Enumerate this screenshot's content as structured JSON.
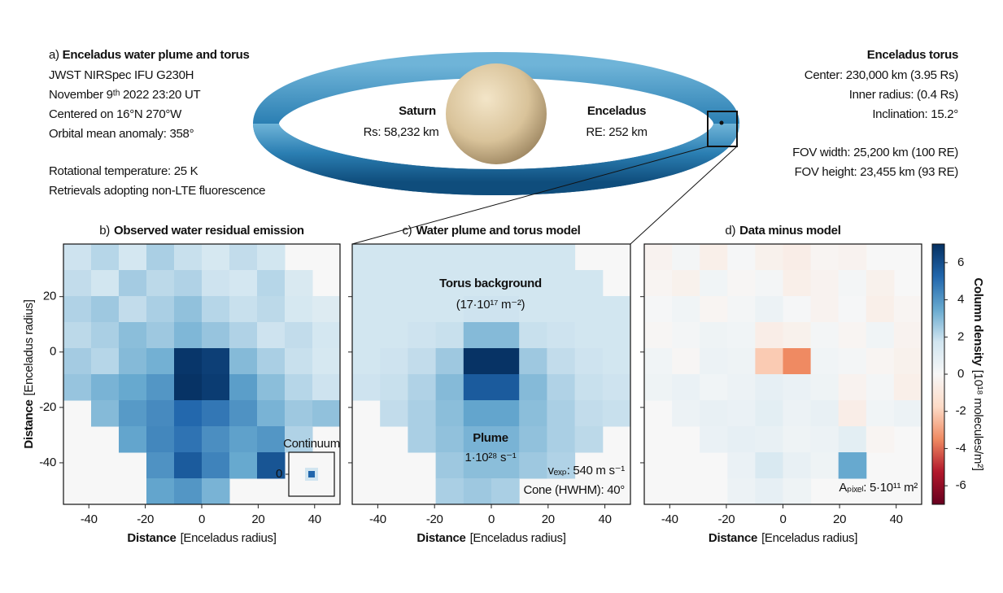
{
  "header": {
    "label": "a)",
    "title": "Enceladus water plume and torus",
    "lines": [
      "JWST NIRSpec IFU G230H",
      "November 9ᵗʰ 2022 23:20 UT",
      "Centered on 16°N 270°W",
      "Orbital mean anomaly: 358°"
    ],
    "lines2": [
      "Rotational temperature: 25 K",
      "Retrievals adopting non-LTE fluorescence"
    ],
    "saturn": {
      "name": "Saturn",
      "radius": "Rs: 58,232 km"
    },
    "enceladus": {
      "name": "Enceladus",
      "radius": "RE: 252 km"
    },
    "torus": {
      "title": "Enceladus torus",
      "lines": [
        "Center: 230,000 km (3.95 Rs)",
        "Inner radius: (0.4 Rs)",
        "Inclination: 15.2°"
      ],
      "fov": [
        "FOV width: 25,200 km (100 RE)",
        "FOV height: 23,455 km (93 RE)"
      ]
    }
  },
  "xlabel_bold": "Distance",
  "xlabel_unit": "[Enceladus radius]",
  "ylabel_bold": "Distance",
  "ylabel_unit": "[Enceladus radius]",
  "colorbar": {
    "label_bold": "Column density",
    "label_unit": "[10¹⁸ molecules/m²]",
    "clim": [
      -7,
      7
    ],
    "ticks": [
      6,
      4,
      2,
      0,
      -2,
      -4,
      -6
    ],
    "colors": [
      "#67001f",
      "#b2182b",
      "#ef8a62",
      "#fddbc7",
      "#f7f7f7",
      "#d1e5f0",
      "#67a9cf",
      "#2166ac",
      "#053061"
    ]
  },
  "chart_data": [
    {
      "type": "heatmap",
      "label": "b)",
      "title": "Observed water residual emission",
      "xlim": [
        -49,
        49
      ],
      "ylim": [
        -55,
        39
      ],
      "xticks": [
        -40,
        -20,
        0,
        20,
        40
      ],
      "yticks": [
        20,
        0,
        -20,
        -40
      ],
      "show_ytick_labels": true,
      "x": [
        -44.1,
        -34.3,
        -24.5,
        -14.7,
        -4.9,
        4.9,
        14.7,
        24.5,
        34.3,
        44.1
      ],
      "y": [
        34.3,
        24.9,
        15.5,
        6.1,
        -3.3,
        -12.7,
        -22.1,
        -31.5,
        -40.9,
        -50.3
      ],
      "z": [
        [
          1.8,
          2.2,
          1.6,
          2.4,
          1.9,
          1.5,
          2.0,
          1.7,
          null,
          null
        ],
        [
          2.0,
          1.7,
          2.5,
          2.1,
          2.3,
          1.8,
          1.6,
          2.2,
          1.4,
          null
        ],
        [
          2.3,
          2.6,
          2.0,
          2.4,
          2.8,
          2.2,
          1.9,
          2.1,
          1.5,
          1.2
        ],
        [
          2.1,
          2.4,
          2.9,
          2.6,
          3.1,
          2.7,
          2.3,
          1.8,
          2.0,
          1.6
        ],
        [
          2.5,
          2.2,
          3.0,
          3.3,
          6.8,
          6.5,
          3.0,
          2.4,
          1.9,
          1.5
        ],
        [
          2.7,
          3.2,
          3.5,
          4.0,
          6.9,
          6.6,
          3.8,
          2.9,
          2.2,
          1.8
        ],
        [
          null,
          3.0,
          3.9,
          4.3,
          5.2,
          4.8,
          4.1,
          3.2,
          2.6,
          2.8
        ],
        [
          null,
          null,
          3.6,
          4.4,
          4.9,
          4.2,
          3.7,
          4.0,
          2.3,
          null
        ],
        [
          null,
          null,
          null,
          4.1,
          5.6,
          4.5,
          3.5,
          5.8,
          null,
          null
        ],
        [
          null,
          null,
          null,
          3.6,
          4.0,
          3.2,
          null,
          null,
          null,
          null
        ]
      ],
      "inset": {
        "title": "Continuum",
        "yticks": [
          0
        ]
      },
      "annotations": []
    },
    {
      "type": "heatmap",
      "label": "c)",
      "title": "Water plume and torus model",
      "xlim": [
        -49,
        49
      ],
      "ylim": [
        -55,
        39
      ],
      "xticks": [
        -40,
        -20,
        0,
        20,
        40
      ],
      "yticks": [
        20,
        0,
        -20,
        -40
      ],
      "show_ytick_labels": false,
      "x": [
        -44.1,
        -34.3,
        -24.5,
        -14.7,
        -4.9,
        4.9,
        14.7,
        24.5,
        34.3,
        44.1
      ],
      "y": [
        34.3,
        24.9,
        15.5,
        6.1,
        -3.3,
        -12.7,
        -22.1,
        -31.5,
        -40.9,
        -50.3
      ],
      "z": [
        [
          1.7,
          1.7,
          1.7,
          1.7,
          1.7,
          1.7,
          1.7,
          1.7,
          null,
          null
        ],
        [
          1.7,
          1.7,
          1.7,
          1.7,
          1.7,
          1.7,
          1.7,
          1.7,
          1.7,
          null
        ],
        [
          1.7,
          1.7,
          1.7,
          1.7,
          1.8,
          1.8,
          1.7,
          1.7,
          1.7,
          1.7
        ],
        [
          1.7,
          1.7,
          1.8,
          1.9,
          3.0,
          3.0,
          1.9,
          1.8,
          1.7,
          1.7
        ],
        [
          1.7,
          1.8,
          2.0,
          2.6,
          6.9,
          6.9,
          2.6,
          2.0,
          1.8,
          1.7
        ],
        [
          1.8,
          1.9,
          2.3,
          3.0,
          5.6,
          5.6,
          3.0,
          2.3,
          1.9,
          1.8
        ],
        [
          null,
          2.0,
          2.4,
          2.9,
          3.6,
          3.6,
          2.9,
          2.4,
          2.0,
          1.9
        ],
        [
          null,
          null,
          2.4,
          2.8,
          3.2,
          3.2,
          2.8,
          2.4,
          2.1,
          null
        ],
        [
          null,
          null,
          null,
          2.6,
          2.9,
          2.9,
          2.6,
          2.3,
          null,
          null
        ],
        [
          null,
          null,
          null,
          2.4,
          2.6,
          2.4,
          null,
          null,
          null,
          null
        ]
      ],
      "annotations": [
        {
          "text": "Torus background",
          "bold": true
        },
        {
          "text": "(17·10¹⁷ m⁻²)",
          "bold": false
        },
        {
          "text": "Plume",
          "bold": true
        },
        {
          "text": "1·10²⁸ s⁻¹",
          "bold": false
        },
        {
          "text": "vₑₓₚ: 540 m s⁻¹",
          "bold": false
        },
        {
          "text": "Cone (HWHM): 40°",
          "bold": false
        }
      ]
    },
    {
      "type": "heatmap",
      "label": "d)",
      "title": "Data minus model",
      "xlim": [
        -49,
        49
      ],
      "ylim": [
        -55,
        39
      ],
      "xticks": [
        -40,
        -20,
        0,
        20,
        40
      ],
      "yticks": [
        20,
        0,
        -20,
        -40
      ],
      "show_ytick_labels": false,
      "x": [
        -44.1,
        -34.3,
        -24.5,
        -14.7,
        -4.9,
        4.9,
        14.7,
        24.5,
        34.3,
        44.1
      ],
      "y": [
        34.3,
        24.9,
        15.5,
        6.1,
        -3.3,
        -12.7,
        -22.1,
        -31.5,
        -40.9,
        -50.3
      ],
      "z": [
        [
          -0.3,
          0.2,
          -0.5,
          0.1,
          -0.4,
          -0.6,
          -0.2,
          -0.3,
          null,
          null
        ],
        [
          -0.2,
          -0.4,
          0.3,
          -0.1,
          0.2,
          -0.5,
          -0.3,
          0.2,
          -0.4,
          null
        ],
        [
          0.1,
          0.3,
          -0.2,
          0.2,
          0.5,
          0.1,
          -0.3,
          0.1,
          -0.5,
          -0.2
        ],
        [
          -0.1,
          0.2,
          0.4,
          0.3,
          -0.6,
          -0.4,
          0.2,
          -0.2,
          0.3,
          -0.3
        ],
        [
          0.3,
          -0.1,
          0.5,
          0.4,
          -2.1,
          -3.5,
          0.3,
          0.2,
          -0.2,
          -0.4
        ],
        [
          0.4,
          0.6,
          0.3,
          0.5,
          0.8,
          0.6,
          0.4,
          -0.3,
          0.2,
          -0.5
        ],
        [
          null,
          0.5,
          0.7,
          0.6,
          0.9,
          0.5,
          0.7,
          -0.6,
          0.3,
          0.5
        ],
        [
          null,
          null,
          0.6,
          0.8,
          0.7,
          0.4,
          0.5,
          0.9,
          -0.2,
          null
        ],
        [
          null,
          null,
          null,
          0.6,
          1.4,
          0.7,
          0.4,
          3.5,
          null,
          null
        ],
        [
          null,
          null,
          null,
          0.5,
          0.8,
          0.4,
          null,
          null,
          null,
          null
        ]
      ],
      "annotations": [
        {
          "text": "Aₚᵢₓₑₗ: 5·10¹¹ m²",
          "bold": false
        }
      ]
    }
  ]
}
